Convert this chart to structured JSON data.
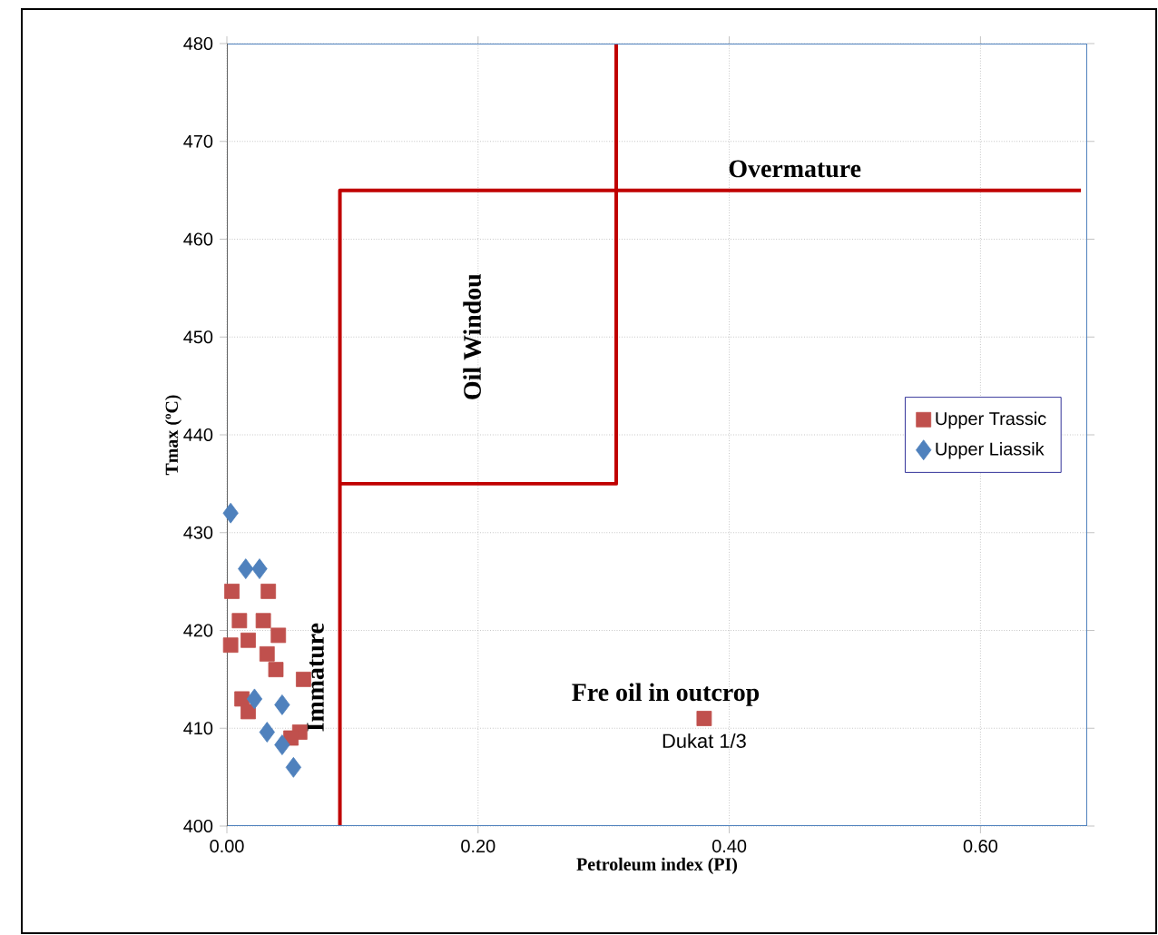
{
  "chart_data": {
    "type": "scatter",
    "xlabel": "Petroleum index (PI)",
    "ylabel": "Tmax (ºC)",
    "xlim": [
      0,
      0.685
    ],
    "ylim": [
      400,
      480
    ],
    "xticks": [
      {
        "value": 0,
        "label": "0.00"
      },
      {
        "value": 0.2,
        "label": "0.20"
      },
      {
        "value": 0.4,
        "label": "0.40"
      },
      {
        "value": 0.6,
        "label": "0.60"
      }
    ],
    "yticks": [
      400,
      410,
      420,
      430,
      440,
      450,
      460,
      470,
      480
    ],
    "grid": true,
    "legend": "right",
    "series": [
      {
        "name": "Upper Trassic",
        "color": "#c0504d",
        "marker": "square",
        "x": [
          0.004,
          0.033,
          0.01,
          0.029,
          0.041,
          0.003,
          0.017,
          0.032,
          0.039,
          0.012,
          0.017,
          0.061,
          0.058,
          0.051,
          0.38
        ],
        "values": [
          424,
          424,
          421,
          421,
          419.5,
          418.5,
          419,
          417.6,
          416,
          413,
          411.7,
          415,
          409.6,
          409,
          411
        ]
      },
      {
        "name": "Upper Liassik",
        "color": "#4f81bd",
        "marker": "diamond",
        "x": [
          0.003,
          0.015,
          0.026,
          0.022,
          0.044,
          0.032,
          0.044,
          0.053
        ],
        "values": [
          432,
          426.3,
          426.3,
          413,
          412.4,
          409.6,
          408.3,
          406
        ]
      },
      {
        "type": "line",
        "color": "#c00000",
        "marker": "none",
        "x": [
          0.09,
          0.09,
          0.68
        ],
        "values": [
          400,
          465,
          465
        ]
      },
      {
        "type": "line",
        "color": "#c00000",
        "marker": "none",
        "x": [
          0.09,
          0.31,
          0.31
        ],
        "values": [
          435,
          435,
          480
        ]
      }
    ],
    "annotations": [
      "Overmature",
      "Oil Windou",
      "Immature",
      "Fre oil in  outcrop",
      {
        "text": "Dukat 1/3",
        "x": 0.38,
        "y": 411
      }
    ]
  }
}
